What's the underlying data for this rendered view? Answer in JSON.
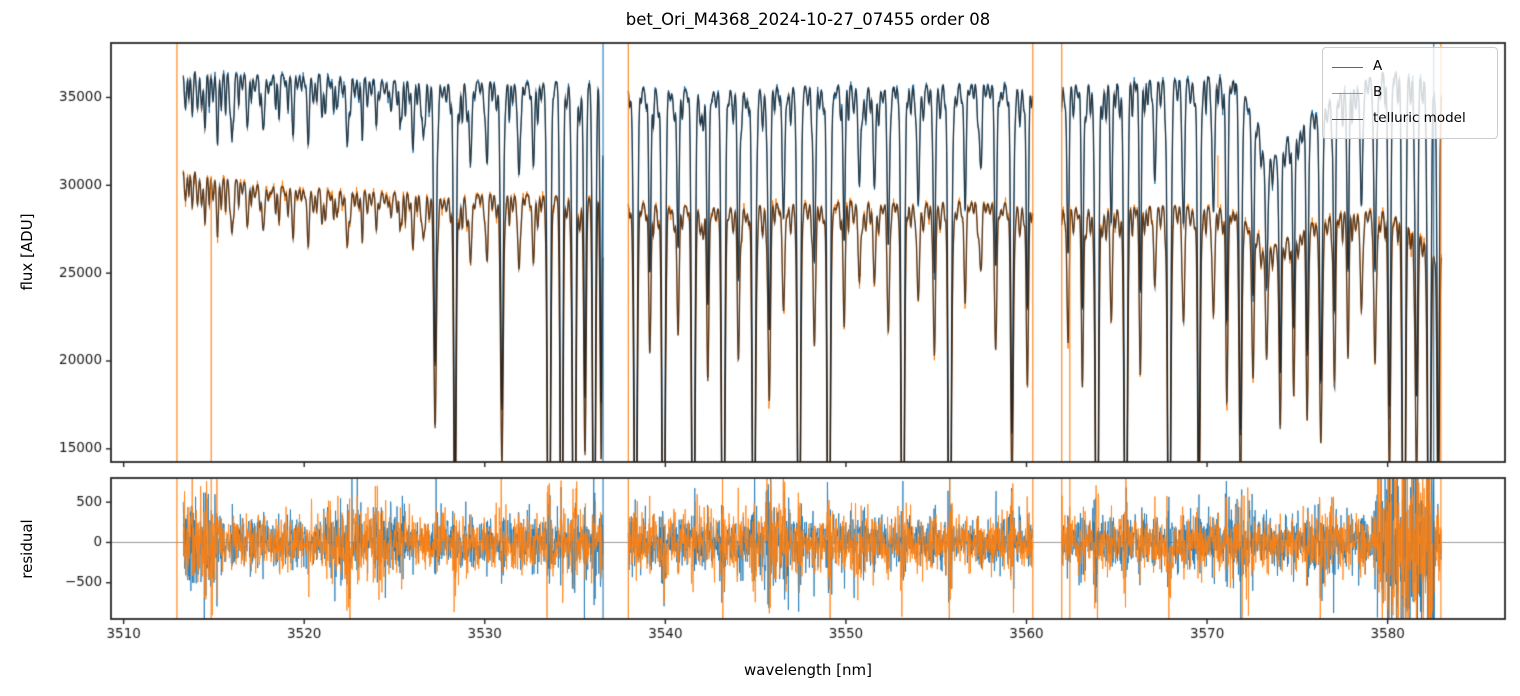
{
  "chart_data": {
    "type": "line",
    "title": "bet_Ori_M4368_2024-10-27_07455  order 08",
    "xlabel": "wavelength [nm]",
    "xlim": [
      3509.3,
      3586.5
    ],
    "xticks": [
      3510,
      3520,
      3530,
      3540,
      3550,
      3560,
      3570,
      3580
    ],
    "panels": [
      {
        "name": "flux",
        "ylabel": "flux [ADU]",
        "ylim": [
          14250,
          38100
        ],
        "yticks": [
          15000,
          20000,
          25000,
          30000,
          35000
        ],
        "grid": false
      },
      {
        "name": "residual",
        "ylabel": "residual",
        "ylim": [
          -950,
          800
        ],
        "yticks": [
          -500,
          0,
          500
        ],
        "zero_line": true,
        "grid": false
      }
    ],
    "legend": {
      "position": "upper right",
      "entries": [
        {
          "label": "A",
          "color": "#1f77b4"
        },
        {
          "label": "B",
          "color": "#ff7f0e"
        },
        {
          "label": "telluric model",
          "color": "#4d4d4d"
        }
      ]
    },
    "colors": {
      "A": "#1f77b4",
      "B": "#ff7f0e",
      "model": "rgba(20,20,20,0.7)",
      "zero_line": "#999999",
      "spine": "#262626"
    },
    "segments": [
      [
        3513.3,
        3536.55
      ],
      [
        3537.95,
        3560.35
      ],
      [
        3561.95,
        3583.0
      ]
    ],
    "series": {
      "A_continuum": [
        [
          3512.9,
          36500
        ],
        [
          3514,
          36550
        ],
        [
          3516,
          36350
        ],
        [
          3518,
          36300
        ],
        [
          3520,
          36350
        ],
        [
          3522,
          36250
        ],
        [
          3524,
          36050
        ],
        [
          3526,
          35950
        ],
        [
          3528,
          35850
        ],
        [
          3530,
          35900
        ],
        [
          3532,
          35850
        ],
        [
          3534,
          35900
        ],
        [
          3536.5,
          35850
        ],
        [
          3538,
          35600
        ],
        [
          3540,
          35500
        ],
        [
          3542,
          35400
        ],
        [
          3544,
          35500
        ],
        [
          3546,
          35600
        ],
        [
          3548,
          35700
        ],
        [
          3550,
          35750
        ],
        [
          3552,
          35600
        ],
        [
          3554,
          35700
        ],
        [
          3556,
          35850
        ],
        [
          3558,
          35800
        ],
        [
          3560,
          35750
        ],
        [
          3562,
          35800
        ],
        [
          3564,
          35900
        ],
        [
          3566,
          36000
        ],
        [
          3568,
          36000
        ],
        [
          3570,
          36200
        ],
        [
          3571.5,
          36100
        ],
        [
          3572.5,
          34500
        ],
        [
          3573.6,
          31400
        ],
        [
          3574.5,
          32800
        ],
        [
          3575.5,
          33800
        ],
        [
          3576.5,
          34700
        ],
        [
          3577.5,
          35400
        ],
        [
          3578.5,
          36100
        ],
        [
          3579.5,
          36400
        ],
        [
          3580.5,
          36600
        ],
        [
          3581.5,
          36500
        ],
        [
          3582.3,
          36300
        ],
        [
          3583,
          35200
        ]
      ],
      "B_continuum": [
        [
          3512.9,
          31100
        ],
        [
          3514,
          30800
        ],
        [
          3515,
          30500
        ],
        [
          3516,
          30350
        ],
        [
          3517,
          30150
        ],
        [
          3518,
          30000
        ],
        [
          3519,
          29900
        ],
        [
          3520,
          29850
        ],
        [
          3522,
          29750
        ],
        [
          3524,
          29650
        ],
        [
          3526,
          29600
        ],
        [
          3528,
          29350
        ],
        [
          3530,
          29500
        ],
        [
          3532,
          29500
        ],
        [
          3534,
          29400
        ],
        [
          3536.5,
          29300
        ],
        [
          3538,
          29100
        ],
        [
          3540,
          28850
        ],
        [
          3542,
          28800
        ],
        [
          3544,
          28800
        ],
        [
          3546,
          29000
        ],
        [
          3548,
          29000
        ],
        [
          3550,
          29150
        ],
        [
          3552,
          29050
        ],
        [
          3554,
          28950
        ],
        [
          3556,
          29150
        ],
        [
          3558,
          29050
        ],
        [
          3560,
          29000
        ],
        [
          3562,
          28850
        ],
        [
          3564,
          28700
        ],
        [
          3566,
          28800
        ],
        [
          3568,
          28850
        ],
        [
          3570,
          28800
        ],
        [
          3571.5,
          28600
        ],
        [
          3572.5,
          27600
        ],
        [
          3573.6,
          26500
        ],
        [
          3574.5,
          27100
        ],
        [
          3575.5,
          27700
        ],
        [
          3576.5,
          28200
        ],
        [
          3577.5,
          28500
        ],
        [
          3578.5,
          28700
        ],
        [
          3579.5,
          28600
        ],
        [
          3580.5,
          28300
        ],
        [
          3581.5,
          27600
        ],
        [
          3582.3,
          26800
        ],
        [
          3583,
          26000
        ]
      ],
      "telluric_lines": [
        [
          3513.8,
          0.05,
          0.05
        ],
        [
          3514.5,
          0.04,
          0.05
        ],
        [
          3515.2,
          0.06,
          0.05
        ],
        [
          3516.0,
          0.1,
          0.06
        ],
        [
          3516.9,
          0.05,
          0.05
        ],
        [
          3517.7,
          0.06,
          0.05
        ],
        [
          3518.6,
          0.05,
          0.05
        ],
        [
          3519.4,
          0.04,
          0.05
        ],
        [
          3520.2,
          0.06,
          0.05
        ],
        [
          3521.0,
          0.05,
          0.05
        ],
        [
          3521.8,
          0.05,
          0.05
        ],
        [
          3522.4,
          0.09,
          0.06
        ],
        [
          3523.2,
          0.05,
          0.05
        ],
        [
          3524.0,
          0.06,
          0.05
        ],
        [
          3524.8,
          0.04,
          0.05
        ],
        [
          3525.4,
          0.06,
          0.05
        ],
        [
          3526.0,
          0.07,
          0.05
        ],
        [
          3526.6,
          0.08,
          0.05
        ],
        [
          3527.25,
          0.45,
          0.07
        ],
        [
          3528.35,
          0.62,
          0.07
        ],
        [
          3529.2,
          0.12,
          0.06
        ],
        [
          3530.1,
          0.1,
          0.06
        ],
        [
          3530.95,
          0.52,
          0.07
        ],
        [
          3531.9,
          0.14,
          0.06
        ],
        [
          3532.7,
          0.12,
          0.06
        ],
        [
          3533.55,
          0.95,
          0.08
        ],
        [
          3534.25,
          0.9,
          0.07
        ],
        [
          3534.95,
          1.0,
          0.08
        ],
        [
          3535.55,
          0.5,
          0.06
        ],
        [
          3536.05,
          0.92,
          0.07
        ],
        [
          3536.45,
          0.5,
          0.05
        ],
        [
          3538.35,
          0.85,
          0.08
        ],
        [
          3539.15,
          0.25,
          0.06
        ],
        [
          3539.9,
          0.9,
          0.08
        ],
        [
          3540.7,
          0.22,
          0.06
        ],
        [
          3541.55,
          0.92,
          0.08
        ],
        [
          3542.35,
          0.3,
          0.06
        ],
        [
          3543.2,
          0.95,
          0.08
        ],
        [
          3544.05,
          0.28,
          0.06
        ],
        [
          3544.9,
          0.9,
          0.08
        ],
        [
          3545.75,
          0.35,
          0.07
        ],
        [
          3546.55,
          0.18,
          0.07
        ],
        [
          3547.4,
          0.9,
          0.08
        ],
        [
          3548.25,
          0.28,
          0.06
        ],
        [
          3549.05,
          0.95,
          0.08
        ],
        [
          3549.9,
          0.22,
          0.06
        ],
        [
          3550.75,
          0.15,
          0.06
        ],
        [
          3551.6,
          0.12,
          0.06
        ],
        [
          3552.35,
          0.25,
          0.06
        ],
        [
          3553.15,
          0.95,
          0.08
        ],
        [
          3554.0,
          0.18,
          0.06
        ],
        [
          3554.9,
          0.3,
          0.06
        ],
        [
          3555.75,
          0.95,
          0.08
        ],
        [
          3556.6,
          0.18,
          0.06
        ],
        [
          3557.45,
          0.12,
          0.06
        ],
        [
          3558.3,
          0.28,
          0.06
        ],
        [
          3559.2,
          0.5,
          0.07
        ],
        [
          3560.05,
          0.3,
          0.06
        ],
        [
          3562.3,
          0.25,
          0.06
        ],
        [
          3563.1,
          0.3,
          0.06
        ],
        [
          3563.9,
          0.9,
          0.08
        ],
        [
          3564.7,
          0.22,
          0.06
        ],
        [
          3565.5,
          0.88,
          0.08
        ],
        [
          3566.3,
          0.28,
          0.06
        ],
        [
          3567.1,
          0.15,
          0.06
        ],
        [
          3567.9,
          0.9,
          0.08
        ],
        [
          3568.7,
          0.22,
          0.06
        ],
        [
          3569.55,
          0.6,
          0.07
        ],
        [
          3570.35,
          0.2,
          0.06
        ],
        [
          3571.1,
          0.35,
          0.06
        ],
        [
          3571.85,
          0.55,
          0.07
        ],
        [
          3572.55,
          0.3,
          0.06
        ],
        [
          3573.3,
          0.25,
          0.06
        ],
        [
          3574.05,
          0.35,
          0.06
        ],
        [
          3574.8,
          0.3,
          0.06
        ],
        [
          3575.55,
          0.35,
          0.06
        ],
        [
          3576.3,
          0.45,
          0.07
        ],
        [
          3577.05,
          0.3,
          0.06
        ],
        [
          3577.8,
          0.25,
          0.06
        ],
        [
          3578.55,
          0.2,
          0.06
        ],
        [
          3579.3,
          0.3,
          0.06
        ],
        [
          3580.1,
          0.5,
          0.07
        ],
        [
          3580.9,
          0.95,
          0.08
        ],
        [
          3581.6,
          0.5,
          0.07
        ],
        [
          3582.3,
          0.9,
          0.08
        ],
        [
          3582.8,
          0.6,
          0.06
        ]
      ],
      "micro_lines": {
        "spacing": 0.23,
        "base_depth": 0.015,
        "rand_depth": 0.05
      },
      "noise": {
        "flux_sigma_A": 110,
        "flux_sigma_B": 135,
        "residual_sigma_A": 150,
        "residual_sigma_B": 165,
        "line_boost": 2.2
      },
      "bursts": [
        [
          3513.3,
          3515.2,
          2.0
        ],
        [
          3521.2,
          3523.2,
          1.8
        ],
        [
          3523.8,
          3525.6,
          1.5
        ],
        [
          3545.3,
          3546.9,
          1.9
        ],
        [
          3550.2,
          3551.2,
          1.4
        ],
        [
          3570.8,
          3572.4,
          1.7
        ],
        [
          3575.8,
          3577.2,
          1.4
        ],
        [
          3579.4,
          3582.6,
          3.2
        ]
      ],
      "artifacts": [
        {
          "wl": 3512.95,
          "series": "B",
          "kind": "full"
        },
        {
          "wl": 3514.85,
          "series": "B",
          "kind": "downB"
        },
        {
          "wl": 3536.55,
          "series": "A",
          "kind": "full"
        },
        {
          "wl": 3537.95,
          "series": "B",
          "kind": "full"
        },
        {
          "wl": 3560.35,
          "series": "B",
          "kind": "full"
        },
        {
          "wl": 3561.95,
          "series": "B",
          "kind": "full"
        },
        {
          "wl": 3562.4,
          "series": "B",
          "kind": "downB"
        },
        {
          "wl": 3570.6,
          "series": "B",
          "kind": "upB",
          "to": 31700
        },
        {
          "wl": 3582.55,
          "series": "A",
          "kind": "full"
        },
        {
          "wl": 3582.95,
          "series": "B",
          "kind": "full"
        }
      ]
    }
  }
}
